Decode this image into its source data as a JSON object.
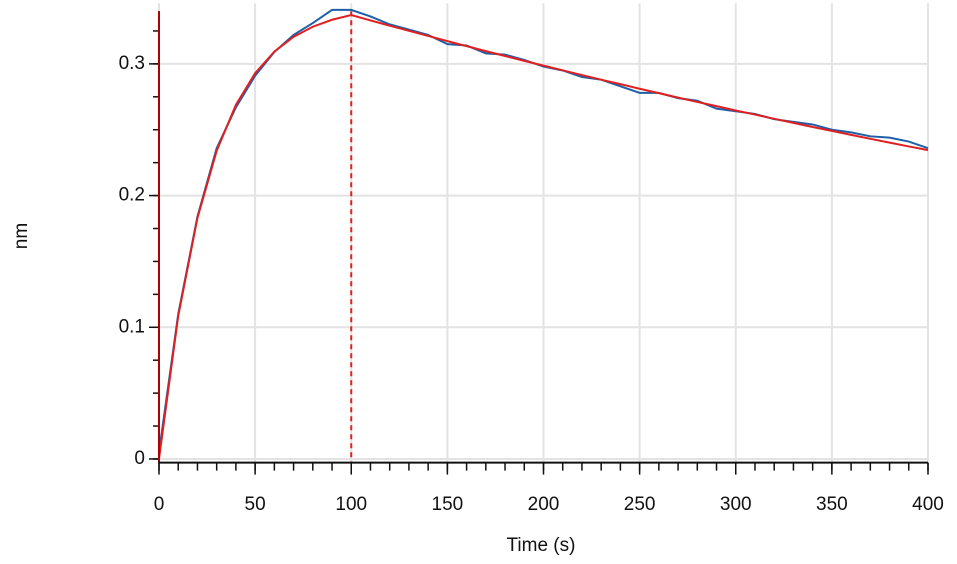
{
  "chart_data": {
    "type": "line",
    "xlabel": "Time (s)",
    "ylabel": "nm",
    "xlim": [
      0,
      400
    ],
    "ylim": [
      -0.002,
      0.346
    ],
    "xticks": [
      0,
      50,
      100,
      150,
      200,
      250,
      300,
      350,
      400
    ],
    "yticks": [
      0,
      0.1,
      0.2,
      0.3
    ],
    "xminorticks": [
      0,
      10,
      20,
      30,
      40,
      50,
      60,
      70,
      80,
      90,
      100,
      110,
      120,
      130,
      140,
      150,
      160,
      170,
      180,
      190,
      200,
      210,
      220,
      230,
      240,
      250,
      260,
      270,
      280,
      290,
      300,
      310,
      320,
      330,
      340,
      350,
      360,
      370,
      380,
      390,
      400
    ],
    "yminorticks": [
      0,
      0.025,
      0.05,
      0.075,
      0.1,
      0.125,
      0.15,
      0.175,
      0.2,
      0.225,
      0.25,
      0.275,
      0.3,
      0.325
    ],
    "grid": true,
    "markers": [
      {
        "x": 0,
        "color": "#b00000",
        "dash": false
      },
      {
        "x": 100,
        "color": "#e02020",
        "dash": true
      }
    ],
    "x": [
      0,
      10,
      20,
      30,
      40,
      50,
      60,
      70,
      80,
      90,
      100,
      110,
      120,
      130,
      140,
      150,
      160,
      170,
      180,
      190,
      200,
      210,
      220,
      230,
      240,
      250,
      260,
      270,
      280,
      290,
      300,
      310,
      320,
      330,
      340,
      350,
      360,
      370,
      380,
      390,
      400
    ],
    "series": [
      {
        "color": "#1f5fa8",
        "values": [
          0.005,
          0.11,
          0.184,
          0.236,
          0.267,
          0.291,
          0.309,
          0.322,
          0.331,
          0.341,
          0.341,
          0.336,
          0.33,
          0.326,
          0.322,
          0.315,
          0.314,
          0.308,
          0.307,
          0.303,
          0.298,
          0.295,
          0.29,
          0.288,
          0.283,
          0.278,
          0.278,
          0.274,
          0.272,
          0.266,
          0.264,
          0.262,
          0.258,
          0.256,
          0.254,
          0.25,
          0.248,
          0.245,
          0.244,
          0.241,
          0.236
        ]
      },
      {
        "color": "#e02020",
        "values": [
          0,
          0.1086,
          0.183,
          0.234,
          0.2689,
          0.2929,
          0.3093,
          0.3205,
          0.3282,
          0.3335,
          0.3371,
          0.333,
          0.329,
          0.3251,
          0.3212,
          0.3173,
          0.3135,
          0.3097,
          0.306,
          0.3023,
          0.2987,
          0.2951,
          0.2915,
          0.288,
          0.2846,
          0.2811,
          0.2778,
          0.2744,
          0.2711,
          0.2679,
          0.2646,
          0.2615,
          0.2583,
          0.2552,
          0.2521,
          0.2491,
          0.2461,
          0.2431,
          0.2402,
          0.2373,
          0.2345
        ]
      }
    ]
  }
}
